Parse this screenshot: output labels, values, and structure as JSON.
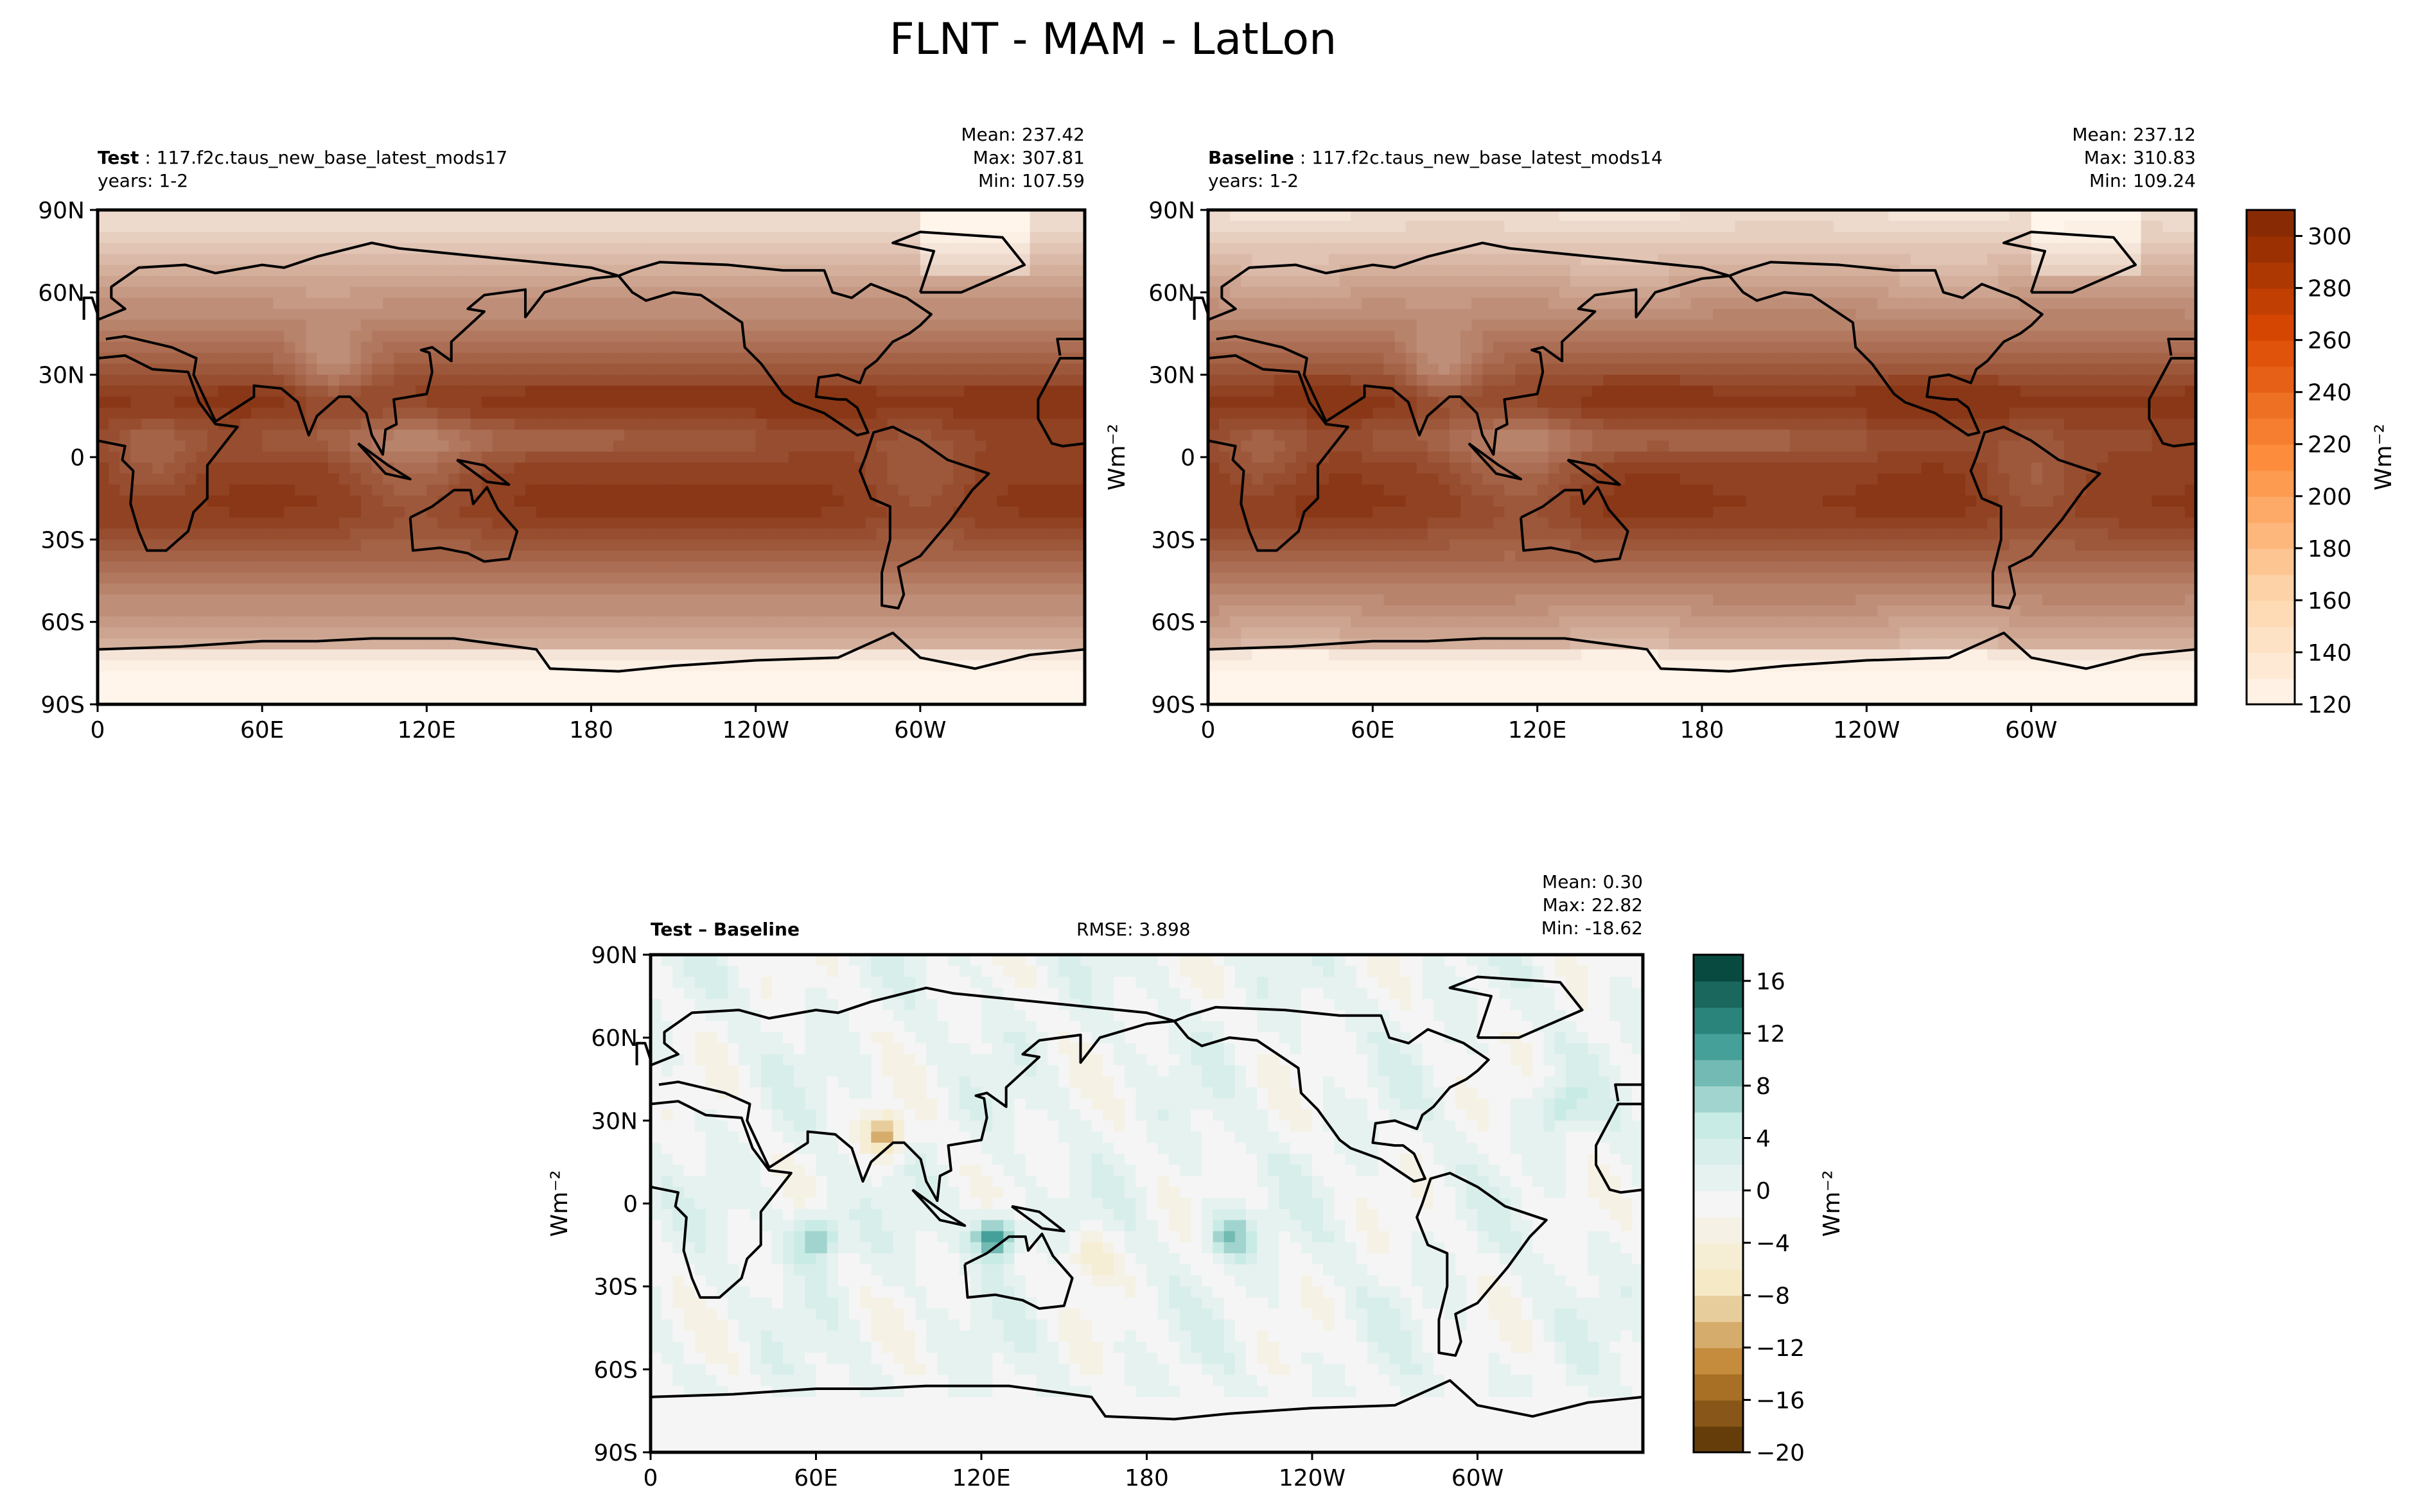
{
  "title": "FLNT - MAM - LatLon",
  "panels": [
    {
      "label_bold": "Test",
      "label_rest": " : 117.f2c.taus_new_base_latest_mods17",
      "years": "years: 1-2",
      "mean": "Mean: 237.42",
      "max": "Max: 307.81",
      "min": "Min: 107.59"
    },
    {
      "label_bold": "Baseline",
      "label_rest": " : 117.f2c.taus_new_base_latest_mods14",
      "years": "years: 1-2",
      "mean": "Mean: 237.12",
      "max": "Max: 310.83",
      "min": "Min: 109.24"
    },
    {
      "label_bold": "Test – Baseline",
      "rmse": "RMSE: 3.898",
      "mean": "Mean:  0.30",
      "max": "Max: 22.82",
      "min": "Min: -18.62"
    }
  ],
  "chart_data": [
    {
      "type": "heatmap",
      "title": "Test",
      "xlim": [
        "0",
        "360"
      ],
      "ylim": [
        "90S",
        "90N"
      ],
      "xticks": [
        "0",
        "60E",
        "120E",
        "180",
        "120W",
        "60W"
      ],
      "yticks": [
        "90N",
        "60N",
        "30N",
        "0",
        "30S",
        "60S",
        "90S"
      ],
      "colormap": "Oranges"
    },
    {
      "type": "heatmap",
      "title": "Baseline",
      "xlim": [
        "0",
        "360"
      ],
      "ylim": [
        "90S",
        "90N"
      ],
      "xticks": [
        "0",
        "60E",
        "120E",
        "180",
        "120W",
        "60W"
      ],
      "yticks": [
        "90N",
        "60N",
        "30N",
        "0",
        "30S",
        "60S",
        "90S"
      ],
      "ylabel": "Wm⁻²",
      "colormap": "Oranges"
    },
    {
      "type": "heatmap",
      "title": "Test – Baseline",
      "xlim": [
        "0",
        "360"
      ],
      "ylim": [
        "90S",
        "90N"
      ],
      "xticks": [
        "0",
        "60E",
        "120E",
        "180",
        "120W",
        "60W"
      ],
      "yticks": [
        "90N",
        "60N",
        "30N",
        "0",
        "30S",
        "60S",
        "90S"
      ],
      "ylabel": "Wm⁻²",
      "colormap": "BrBG"
    }
  ],
  "colorbars": [
    {
      "label": "Wm⁻²",
      "range": [
        120,
        310
      ],
      "step": 10,
      "ticks": [
        "120",
        "140",
        "160",
        "180",
        "200",
        "220",
        "240",
        "260",
        "280",
        "300"
      ],
      "colors": [
        "#fff5eb",
        "#7f2704"
      ]
    },
    {
      "label": "Wm⁻²",
      "range": [
        -20,
        18
      ],
      "step": 2,
      "ticks": [
        "−20",
        "−16",
        "−12",
        "−8",
        "−4",
        "0",
        "4",
        "8",
        "12",
        "16"
      ],
      "colors": [
        "#543005",
        "#f5f5f5",
        "#003c30"
      ]
    }
  ]
}
